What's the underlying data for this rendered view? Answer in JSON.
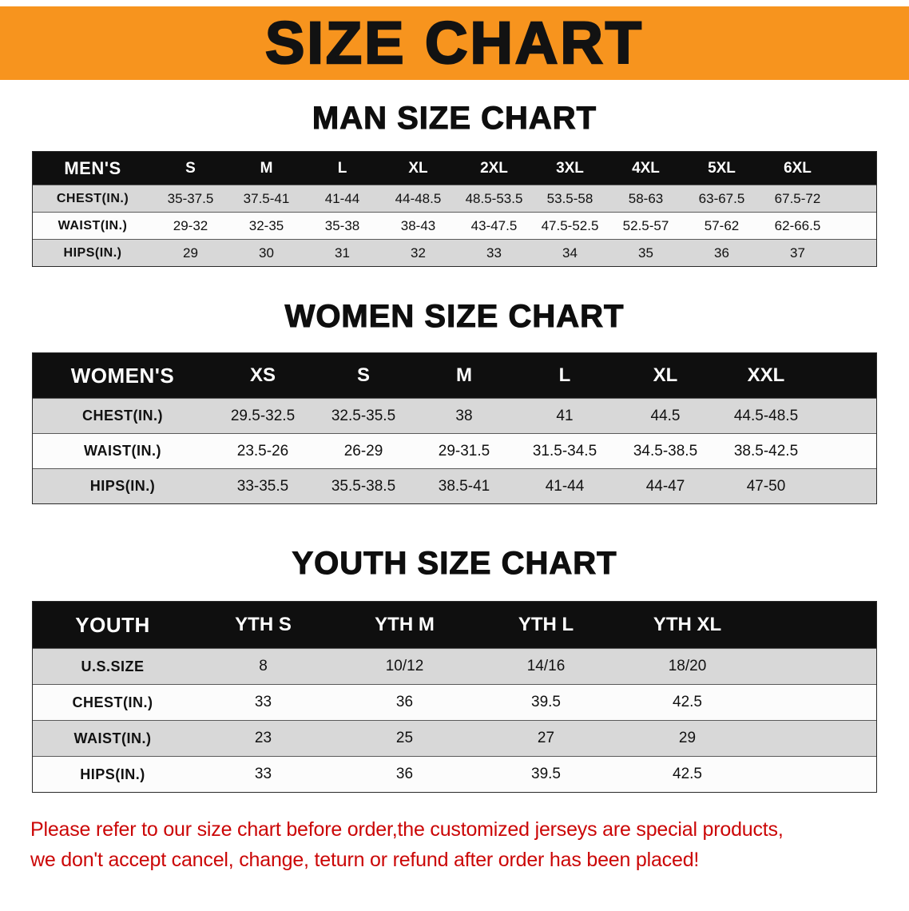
{
  "banner": {
    "title": "SIZE CHART",
    "bg_color": "#f7941e"
  },
  "sections": [
    {
      "heading": "MAN SIZE CHART",
      "table": {
        "label": "MEN'S",
        "columns": [
          "S",
          "M",
          "L",
          "XL",
          "2XL",
          "3XL",
          "4XL",
          "5XL",
          "6XL"
        ],
        "rows": [
          {
            "label": "CHEST(IN.)",
            "values": [
              "35-37.5",
              "37.5-41",
              "41-44",
              "44-48.5",
              "48.5-53.5",
              "53.5-58",
              "58-63",
              "63-67.5",
              "67.5-72"
            ]
          },
          {
            "label": "WAIST(IN.)",
            "values": [
              "29-32",
              "32-35",
              "35-38",
              "38-43",
              "43-47.5",
              "47.5-52.5",
              "52.5-57",
              "57-62",
              "62-66.5"
            ]
          },
          {
            "label": "HIPS(IN.)",
            "values": [
              "29",
              "30",
              "31",
              "32",
              "33",
              "34",
              "35",
              "36",
              "37"
            ]
          }
        ]
      }
    },
    {
      "heading": "WOMEN SIZE CHART",
      "table": {
        "label": "WOMEN'S",
        "columns": [
          "XS",
          "S",
          "M",
          "L",
          "XL",
          "XXL"
        ],
        "rows": [
          {
            "label": "CHEST(IN.)",
            "values": [
              "29.5-32.5",
              "32.5-35.5",
              "38",
              "41",
              "44.5",
              "44.5-48.5"
            ]
          },
          {
            "label": "WAIST(IN.)",
            "values": [
              "23.5-26",
              "26-29",
              "29-31.5",
              "31.5-34.5",
              "34.5-38.5",
              "38.5-42.5"
            ]
          },
          {
            "label": "HIPS(IN.)",
            "values": [
              "33-35.5",
              "35.5-38.5",
              "38.5-41",
              "41-44",
              "44-47",
              "47-50"
            ]
          }
        ]
      }
    },
    {
      "heading": "YOUTH SIZE CHART",
      "table": {
        "label": "YOUTH",
        "columns": [
          "YTH S",
          "YTH M",
          "YTH L",
          "YTH XL"
        ],
        "rows": [
          {
            "label": "U.S.SIZE",
            "values": [
              "8",
              "10/12",
              "14/16",
              "18/20"
            ]
          },
          {
            "label": "CHEST(IN.)",
            "values": [
              "33",
              "36",
              "39.5",
              "42.5"
            ]
          },
          {
            "label": "WAIST(IN.)",
            "values": [
              "23",
              "25",
              "27",
              "29"
            ]
          },
          {
            "label": "HIPS(IN.)",
            "values": [
              "33",
              "36",
              "39.5",
              "42.5"
            ]
          }
        ]
      }
    }
  ],
  "footer": {
    "line1": "Please refer to our size chart before order,the customized jerseys are special products,",
    "line2": "we don't accept cancel, change, teturn or refund after order has been placed!",
    "color": "#cb0606"
  }
}
